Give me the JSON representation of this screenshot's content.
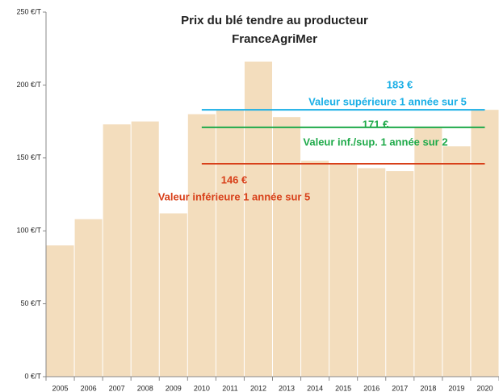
{
  "chart_data": {
    "type": "bar",
    "title": "Prix du blé tendre au producteur",
    "subtitle": "FranceAgriMer",
    "categories": [
      "2005",
      "2006",
      "2007",
      "2008",
      "2009",
      "2010",
      "2011",
      "2012",
      "2013",
      "2014",
      "2015",
      "2016",
      "2017",
      "2018",
      "2019",
      "2020"
    ],
    "values": [
      90,
      108,
      173,
      175,
      112,
      180,
      183,
      216,
      178,
      148,
      146,
      143,
      141,
      171,
      158,
      183
    ],
    "color": "#f3ddbd",
    "ylim": [
      0,
      250
    ],
    "yticks": [
      {
        "value": 0,
        "label": "0 €/T"
      },
      {
        "value": 50,
        "label": "50 €/T"
      },
      {
        "value": 100,
        "label": "100 €/T"
      },
      {
        "value": 150,
        "label": "150 €/T"
      },
      {
        "value": 200,
        "label": "200 €/T"
      },
      {
        "value": 250,
        "label": "250 €/T"
      }
    ],
    "reference_lines": [
      {
        "value": 183,
        "value_label": "183 €",
        "text": "Valeur supérieure 1 année sur 5",
        "color": "#1aafe6"
      },
      {
        "value": 171,
        "value_label": "171 €",
        "text": "Valeur inf./sup. 1 année sur 2",
        "color": "#1faa4a"
      },
      {
        "value": 146,
        "value_label": "146 €",
        "text": "Valeur inférieure 1 année sur 5",
        "color": "#d8401a"
      }
    ]
  }
}
